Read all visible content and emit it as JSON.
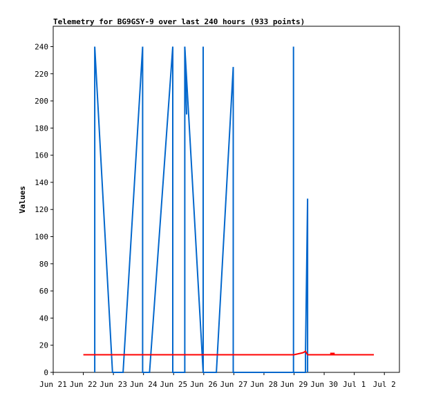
{
  "chart_data": {
    "type": "line",
    "title": "Telemetry for BG9GSY-9 over last 240 hours (933 points)",
    "ylabel": "Values",
    "xlabel": "",
    "ylim": [
      0,
      255
    ],
    "xlim": [
      0,
      11.5
    ],
    "yticks": [
      0,
      20,
      40,
      60,
      80,
      100,
      120,
      140,
      160,
      180,
      200,
      220,
      240
    ],
    "xticks": [
      {
        "pos": 0,
        "label": "Jun 21"
      },
      {
        "pos": 1,
        "label": "Jun 22"
      },
      {
        "pos": 2,
        "label": "Jun 23"
      },
      {
        "pos": 3,
        "label": "Jun 24"
      },
      {
        "pos": 4,
        "label": "Jun 25"
      },
      {
        "pos": 5,
        "label": "Jun 26"
      },
      {
        "pos": 6,
        "label": "Jun 27"
      },
      {
        "pos": 7,
        "label": "Jun 28"
      },
      {
        "pos": 8,
        "label": "Jun 29"
      },
      {
        "pos": 9,
        "label": "Jun 30"
      },
      {
        "pos": 10,
        "label": "Jul 1"
      },
      {
        "pos": 11,
        "label": "Jul 2"
      }
    ],
    "grid": false,
    "series": [
      {
        "color": "#000000",
        "points": [
          [
            1.0,
            0
          ],
          [
            10.45,
            0
          ]
        ]
      },
      {
        "color": "#0066cc",
        "points": [
          [
            1.38,
            0
          ],
          [
            1.38,
            240
          ],
          [
            1.97,
            0
          ],
          [
            2.32,
            0
          ],
          [
            2.97,
            240
          ],
          [
            2.97,
            0
          ],
          [
            3.2,
            0
          ],
          [
            3.97,
            240
          ],
          [
            3.97,
            0
          ],
          [
            4.37,
            0
          ],
          [
            4.37,
            240
          ],
          [
            4.98,
            0
          ],
          [
            4.98,
            240
          ],
          [
            4.98,
            0
          ],
          [
            5.42,
            0
          ],
          [
            5.98,
            225
          ],
          [
            5.98,
            0
          ],
          [
            7.98,
            0
          ],
          [
            7.98,
            240
          ],
          [
            7.98,
            0
          ],
          [
            8.38,
            0
          ],
          [
            8.38,
            15
          ],
          [
            8.45,
            128
          ],
          [
            8.45,
            0
          ]
        ]
      },
      {
        "color": "#0066cc",
        "points": [
          [
            4.37,
            240
          ],
          [
            4.43,
            190
          ]
        ]
      },
      {
        "color": "#ff0000",
        "points": [
          [
            1.0,
            13
          ],
          [
            8.0,
            13
          ],
          [
            8.3,
            14.5
          ],
          [
            8.38,
            15.5
          ],
          [
            8.45,
            13
          ],
          [
            10.65,
            13
          ]
        ]
      },
      {
        "color": "#ff0000",
        "points": [
          [
            9.2,
            14
          ],
          [
            9.35,
            14
          ]
        ]
      }
    ]
  }
}
